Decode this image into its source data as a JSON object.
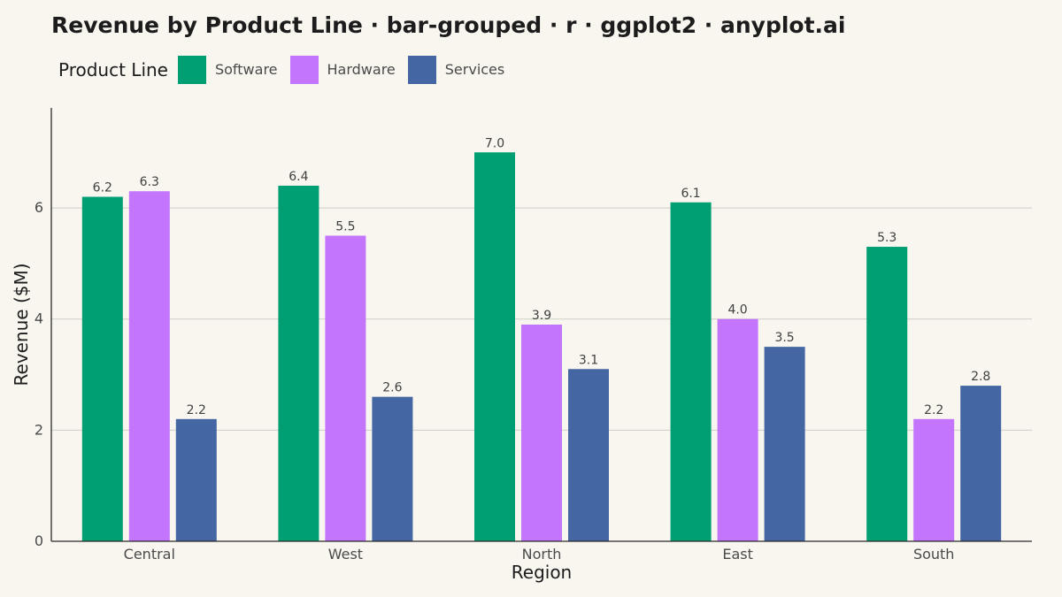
{
  "title": "Revenue by Product Line · bar-grouped · r · ggplot2 · anyplot.ai",
  "legend": {
    "title": "Product Line",
    "items": [
      {
        "name": "Software",
        "color": "#009e73"
      },
      {
        "name": "Hardware",
        "color": "#c475fd"
      },
      {
        "name": "Services",
        "color": "#4467a3"
      }
    ]
  },
  "chart_data": {
    "type": "bar",
    "title": "Revenue by Product Line · bar-grouped · r · ggplot2 · anyplot.ai",
    "xlabel": "Region",
    "ylabel": "Revenue ($M)",
    "categories": [
      "Central",
      "West",
      "North",
      "East",
      "South"
    ],
    "series": [
      {
        "name": "Software",
        "color": "#009e73",
        "values": [
          6.2,
          6.4,
          7.0,
          6.1,
          5.3
        ]
      },
      {
        "name": "Hardware",
        "color": "#c475fd",
        "values": [
          6.3,
          5.5,
          3.9,
          4.0,
          2.2
        ]
      },
      {
        "name": "Services",
        "color": "#4467a3",
        "values": [
          2.2,
          2.6,
          3.1,
          3.5,
          2.8
        ]
      }
    ],
    "ylim": [
      0,
      7.8
    ],
    "yticks": [
      0,
      2,
      4,
      6
    ],
    "grid": true,
    "grid_axis": "y",
    "data_labels": true,
    "legend_position": "top"
  }
}
